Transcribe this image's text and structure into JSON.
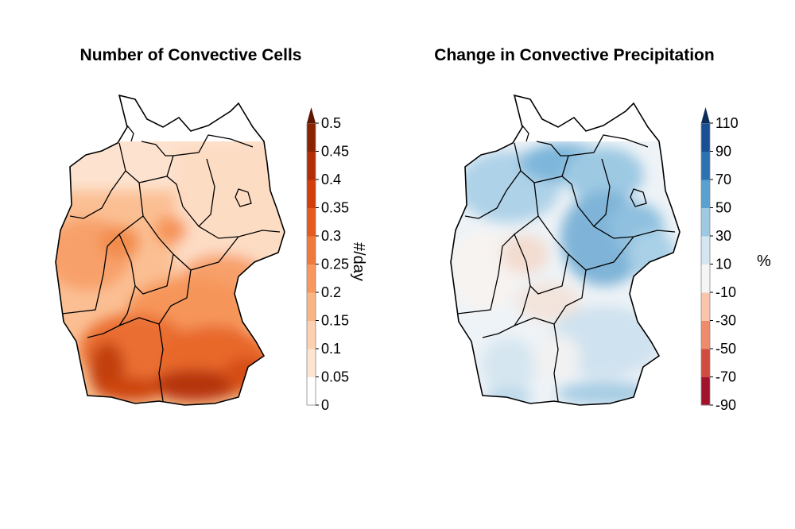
{
  "panels": [
    {
      "title": "Number of Convective Cells",
      "unit": "#/day",
      "colorbar_ticks": [
        "0",
        "0.05",
        "0.1",
        "0.15",
        "0.2",
        "0.25",
        "0.3",
        "0.35",
        "0.4",
        "0.45",
        "0.5"
      ],
      "colors": [
        "#ffffff",
        "#fde5d2",
        "#fcd0b0",
        "#fbb585",
        "#f8985e",
        "#f07a3c",
        "#e45a1f",
        "#d23d0c",
        "#b32e06",
        "#8c2204",
        "#5e1602"
      ],
      "extend": "max"
    },
    {
      "title": "Change in Convective Precipitation",
      "unit": "%",
      "colorbar_ticks": [
        "-90",
        "-70",
        "-50",
        "-30",
        "-10",
        "10",
        "30",
        "50",
        "70",
        "90",
        "110"
      ],
      "colors": [
        "#a3122d",
        "#d24b40",
        "#ef8b6c",
        "#f9c5ab",
        "#f5f5f5",
        "#d3e6f1",
        "#9ccae2",
        "#5aa1cf",
        "#2c72b3",
        "#1a4f95",
        "#0c2c5a"
      ],
      "extend": "max"
    }
  ]
}
